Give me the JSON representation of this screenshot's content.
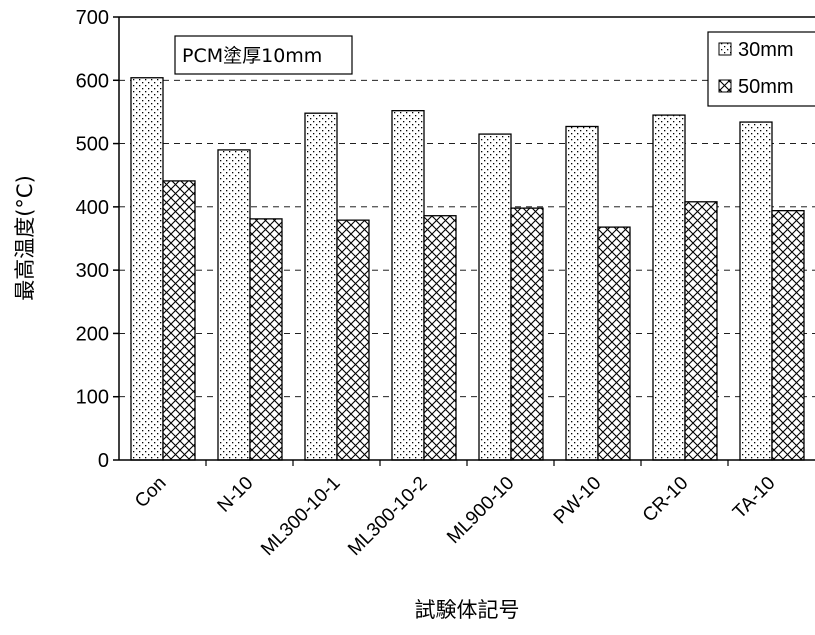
{
  "chart_data": {
    "type": "bar",
    "title": "",
    "xlabel": "試験体記号",
    "ylabel": "最高温度(°C)",
    "annotation": "PCM塗厚10mm",
    "categories": [
      "Con",
      "N-10",
      "ML300-10-1",
      "ML300-10-2",
      "ML900-10",
      "PW-10",
      "CR-10",
      "TA-10"
    ],
    "series": [
      {
        "name": "30mm",
        "values": [
          604,
          490,
          548,
          552,
          515,
          527,
          545,
          534
        ],
        "pattern": "dots"
      },
      {
        "name": "50mm",
        "values": [
          441,
          381,
          379,
          386,
          398,
          368,
          408,
          394
        ],
        "pattern": "crosshatch"
      }
    ],
    "ylim": [
      0,
      700
    ],
    "yticks": [
      0,
      100,
      200,
      300,
      400,
      500,
      600,
      700
    ],
    "grid": "dashed horizontal",
    "legend_position": "top-right",
    "colors": {
      "bar_fill": "#ffffff",
      "stroke": "#000000"
    }
  }
}
